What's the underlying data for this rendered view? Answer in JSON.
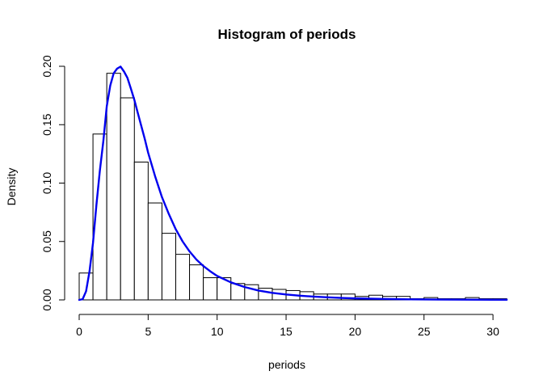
{
  "chart_data": {
    "type": "bar",
    "title": "Histogram of periods",
    "xlabel": "periods",
    "ylabel": "Density",
    "xlim": [
      -1,
      31
    ],
    "ylim": [
      0,
      0.205
    ],
    "x_ticks": [
      0,
      5,
      10,
      15,
      20,
      25,
      30
    ],
    "x_tick_labels": [
      "0",
      "5",
      "10",
      "15",
      "20",
      "25",
      "30"
    ],
    "y_ticks": [
      0.0,
      0.05,
      0.1,
      0.15,
      0.2
    ],
    "y_tick_labels": [
      "0.00",
      "0.05",
      "0.10",
      "0.15",
      "0.20"
    ],
    "bin_width": 1,
    "bins": [
      {
        "start": 0,
        "end": 1,
        "density": 0.023
      },
      {
        "start": 1,
        "end": 2,
        "density": 0.142
      },
      {
        "start": 2,
        "end": 3,
        "density": 0.194
      },
      {
        "start": 3,
        "end": 4,
        "density": 0.173
      },
      {
        "start": 4,
        "end": 5,
        "density": 0.118
      },
      {
        "start": 5,
        "end": 6,
        "density": 0.083
      },
      {
        "start": 6,
        "end": 7,
        "density": 0.057
      },
      {
        "start": 7,
        "end": 8,
        "density": 0.039
      },
      {
        "start": 8,
        "end": 9,
        "density": 0.03
      },
      {
        "start": 9,
        "end": 10,
        "density": 0.019
      },
      {
        "start": 10,
        "end": 11,
        "density": 0.019
      },
      {
        "start": 11,
        "end": 12,
        "density": 0.014
      },
      {
        "start": 12,
        "end": 13,
        "density": 0.013
      },
      {
        "start": 13,
        "end": 14,
        "density": 0.01
      },
      {
        "start": 14,
        "end": 15,
        "density": 0.009
      },
      {
        "start": 15,
        "end": 16,
        "density": 0.008
      },
      {
        "start": 16,
        "end": 17,
        "density": 0.007
      },
      {
        "start": 17,
        "end": 18,
        "density": 0.005
      },
      {
        "start": 18,
        "end": 19,
        "density": 0.005
      },
      {
        "start": 19,
        "end": 20,
        "density": 0.005
      },
      {
        "start": 20,
        "end": 21,
        "density": 0.003
      },
      {
        "start": 21,
        "end": 22,
        "density": 0.004
      },
      {
        "start": 22,
        "end": 23,
        "density": 0.003
      },
      {
        "start": 23,
        "end": 24,
        "density": 0.003
      },
      {
        "start": 24,
        "end": 25,
        "density": 0.001
      },
      {
        "start": 25,
        "end": 26,
        "density": 0.002
      },
      {
        "start": 26,
        "end": 27,
        "density": 0.001
      },
      {
        "start": 27,
        "end": 28,
        "density": 0.001
      },
      {
        "start": 28,
        "end": 29,
        "density": 0.002
      },
      {
        "start": 29,
        "end": 30,
        "density": 0.001
      },
      {
        "start": 30,
        "end": 31,
        "density": 0.001
      }
    ],
    "density_curve": {
      "color": "#0000ee",
      "x": [
        0,
        0.25,
        0.5,
        0.75,
        1,
        1.25,
        1.5,
        1.75,
        2,
        2.25,
        2.5,
        2.75,
        3,
        3.25,
        3.5,
        3.75,
        4,
        4.25,
        4.5,
        4.75,
        5,
        5.5,
        6,
        6.5,
        7,
        7.5,
        8,
        8.5,
        9,
        9.5,
        10,
        11,
        12,
        13,
        14,
        15,
        16,
        17,
        18,
        19,
        20,
        22,
        24,
        26,
        28,
        30,
        31
      ],
      "y": [
        0,
        0.0006,
        0.0074,
        0.0245,
        0.0486,
        0.0814,
        0.1108,
        0.1358,
        0.1658,
        0.1834,
        0.194,
        0.198,
        0.1997,
        0.1955,
        0.19,
        0.1808,
        0.1712,
        0.16,
        0.149,
        0.138,
        0.126,
        0.106,
        0.088,
        0.0735,
        0.0605,
        0.05,
        0.0415,
        0.0345,
        0.029,
        0.0245,
        0.0205,
        0.015,
        0.011,
        0.008,
        0.006,
        0.0046,
        0.0036,
        0.0028,
        0.0022,
        0.0017,
        0.0013,
        0.0008,
        0.0005,
        0.0003,
        0.0002,
        0.0001,
        0.0001
      ]
    }
  }
}
